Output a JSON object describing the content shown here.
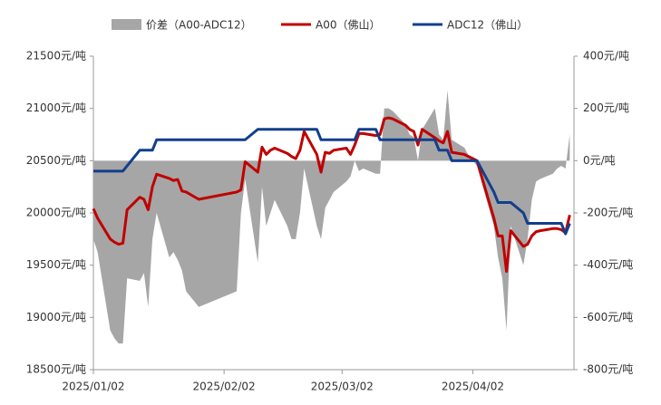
{
  "chart_data": {
    "type": "line",
    "legend": "top",
    "x": [
      "2025-01-02",
      "2025-01-03",
      "2025-01-06",
      "2025-01-07",
      "2025-01-08",
      "2025-01-09",
      "2025-01-10",
      "2025-01-13",
      "2025-01-14",
      "2025-01-15",
      "2025-01-16",
      "2025-01-17",
      "2025-01-20",
      "2025-01-21",
      "2025-01-22",
      "2025-01-23",
      "2025-01-24",
      "2025-01-27",
      "2025-02-05",
      "2025-02-06",
      "2025-02-07",
      "2025-02-10",
      "2025-02-11",
      "2025-02-12",
      "2025-02-13",
      "2025-02-14",
      "2025-02-17",
      "2025-02-18",
      "2025-02-19",
      "2025-02-20",
      "2025-02-21",
      "2025-02-24",
      "2025-02-25",
      "2025-02-26",
      "2025-02-27",
      "2025-02-28",
      "2025-03-03",
      "2025-03-04",
      "2025-03-05",
      "2025-03-06",
      "2025-03-07",
      "2025-03-10",
      "2025-03-11",
      "2025-03-12",
      "2025-03-13",
      "2025-03-14",
      "2025-03-17",
      "2025-03-18",
      "2025-03-19",
      "2025-03-20",
      "2025-03-21",
      "2025-03-24",
      "2025-03-25",
      "2025-03-26",
      "2025-03-27",
      "2025-03-28",
      "2025-03-31",
      "2025-04-01",
      "2025-04-02",
      "2025-04-03",
      "2025-04-07",
      "2025-04-08",
      "2025-04-09",
      "2025-04-10",
      "2025-04-11",
      "2025-04-14",
      "2025-04-15",
      "2025-04-16",
      "2025-04-17",
      "2025-04-18",
      "2025-04-21",
      "2025-04-22",
      "2025-04-23",
      "2025-04-24",
      "2025-04-25"
    ],
    "xlim": [
      "2025-01-02",
      "2025-04-26"
    ],
    "xticks": [
      {
        "value": "2025-01-02",
        "label": "2025/01/02"
      },
      {
        "value": "2025-02-02",
        "label": "2025/02/02"
      },
      {
        "value": "2025-03-02",
        "label": "2025/03/02"
      },
      {
        "value": "2025-04-02",
        "label": "2025/04/02"
      }
    ],
    "ylim": [
      18500,
      21500
    ],
    "yticks": [
      {
        "value": 18500,
        "label": "18500元/吨"
      },
      {
        "value": 19000,
        "label": "19000元/吨"
      },
      {
        "value": 19500,
        "label": "19500元/吨"
      },
      {
        "value": 20000,
        "label": "20000元/吨"
      },
      {
        "value": 20500,
        "label": "20500元/吨"
      },
      {
        "value": 21000,
        "label": "21000元/吨"
      },
      {
        "value": 21500,
        "label": "21500元/吨"
      }
    ],
    "y2lim": [
      -800,
      400
    ],
    "y2ticks": [
      {
        "value": -800,
        "label": "-800元/吨"
      },
      {
        "value": -600,
        "label": "-600元/吨"
      },
      {
        "value": -400,
        "label": "-400元/吨"
      },
      {
        "value": -200,
        "label": "-200元/吨"
      },
      {
        "value": 0,
        "label": "0元/吨"
      },
      {
        "value": 200,
        "label": "200元/吨"
      },
      {
        "value": 400,
        "label": "400元/吨"
      }
    ],
    "series": [
      {
        "name": "价差（A00-ADC12）",
        "type": "area",
        "axis": "y2",
        "color": "#a6a6a6",
        "values": [
          -300,
          -350,
          -650,
          -680,
          -700,
          -700,
          -450,
          -460,
          -430,
          -560,
          -300,
          -200,
          -370,
          -350,
          -380,
          -420,
          -500,
          -560,
          -500,
          -200,
          -70,
          -390,
          -100,
          -250,
          -200,
          -150,
          -250,
          -300,
          -300,
          -200,
          -30,
          -250,
          -300,
          -180,
          -150,
          -120,
          -80,
          -60,
          0,
          -40,
          -30,
          -50,
          -50,
          200,
          200,
          190,
          140,
          100,
          90,
          0,
          120,
          200,
          100,
          80,
          270,
          80,
          50,
          20,
          0,
          -20,
          -250,
          -370,
          -450,
          -650,
          -250,
          -400,
          -300,
          -150,
          -80,
          -70,
          -50,
          -30,
          -20,
          -30,
          100
        ]
      },
      {
        "name": "A00（佛山）",
        "type": "line",
        "color": "#c00000",
        "values": [
          20040,
          19950,
          19750,
          19720,
          19700,
          19710,
          20030,
          20150,
          20130,
          20030,
          20250,
          20370,
          20330,
          20310,
          20320,
          20210,
          20200,
          20130,
          20200,
          20220,
          20490,
          20390,
          20630,
          20560,
          20600,
          20620,
          20570,
          20540,
          20520,
          20600,
          20780,
          20560,
          20390,
          20580,
          20570,
          20600,
          20620,
          20560,
          20650,
          20760,
          20760,
          20740,
          20750,
          20900,
          20910,
          20900,
          20840,
          20800,
          20780,
          20650,
          20800,
          20720,
          20690,
          20670,
          20780,
          20580,
          20560,
          20540,
          20520,
          20500,
          19950,
          19780,
          19780,
          19440,
          19830,
          19680,
          19700,
          19780,
          19820,
          19830,
          19850,
          19850,
          19840,
          19810,
          19980
        ]
      },
      {
        "name": "ADC12（佛山）",
        "type": "line",
        "color": "#123f8c",
        "values": [
          20400,
          20400,
          20400,
          20400,
          20400,
          20400,
          20450,
          20600,
          20600,
          20600,
          20600,
          20700,
          20700,
          20700,
          20700,
          20700,
          20700,
          20700,
          20700,
          20700,
          20700,
          20800,
          20800,
          20800,
          20800,
          20800,
          20800,
          20800,
          20800,
          20800,
          20800,
          20800,
          20700,
          20700,
          20700,
          20700,
          20700,
          20700,
          20700,
          20800,
          20800,
          20800,
          20700,
          20700,
          20700,
          20700,
          20700,
          20700,
          20700,
          20700,
          20700,
          20700,
          20600,
          20600,
          20600,
          20500,
          20500,
          20500,
          20500,
          20500,
          20200,
          20100,
          20100,
          20100,
          20100,
          20000,
          19900,
          19900,
          19900,
          19900,
          19900,
          19900,
          19900,
          19800,
          19900
        ]
      }
    ]
  }
}
